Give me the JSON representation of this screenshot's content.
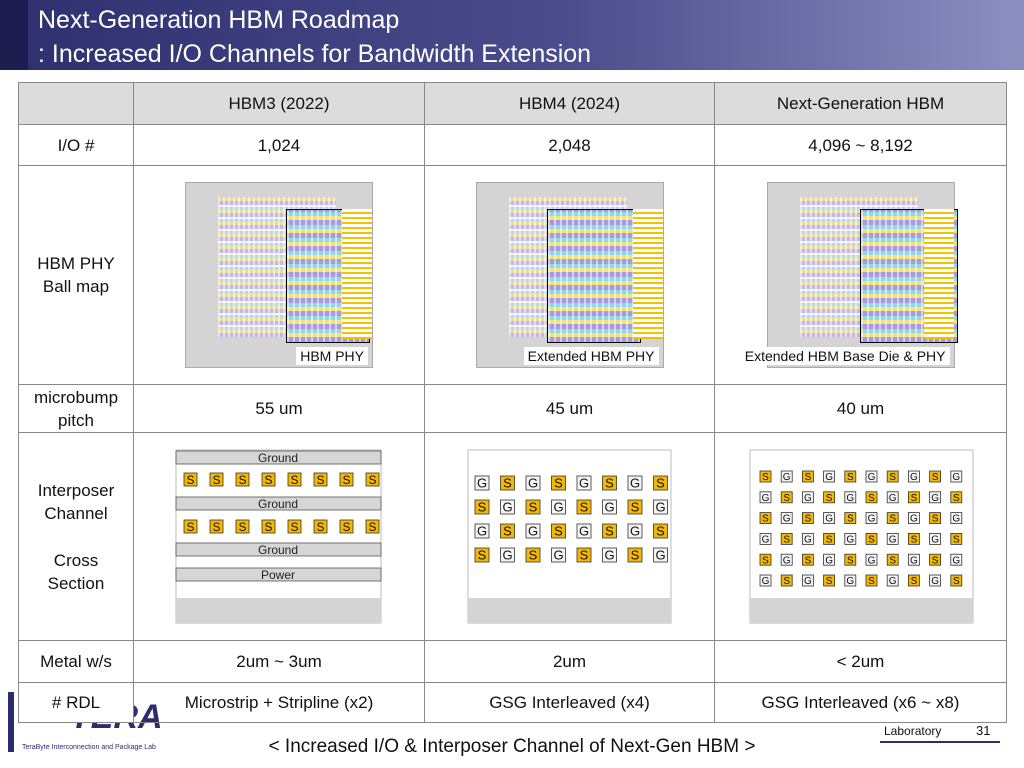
{
  "header": {
    "title_line1": "Next-Generation HBM Roadmap",
    "title_line2": ": Increased I/O Channels for Bandwidth Extension"
  },
  "table": {
    "columns": [
      "HBM3 (2022)",
      "HBM4 (2024)",
      "Next-Generation HBM"
    ],
    "io": {
      "label": "I/O #",
      "cells": [
        "1,024",
        "2,048",
        "4,096 ~ 8,192"
      ]
    },
    "ballmap": {
      "label_lines": [
        "HBM PHY",
        "Ball map"
      ],
      "captions": [
        "HBM PHY",
        "Extended HBM PHY",
        "Extended HBM Base Die & PHY"
      ]
    },
    "pitch": {
      "label_lines": [
        "microbump",
        "pitch"
      ],
      "cells": [
        "55 um",
        "45 um",
        "40 um"
      ]
    },
    "cross": {
      "label_lines": [
        "Interposer",
        "Channel",
        "Cross",
        "Section"
      ],
      "hbm3": {
        "ground": "Ground",
        "power": "Power",
        "signals": [
          [
            "S",
            "S",
            "S",
            "S",
            "S",
            "S",
            "S",
            "S"
          ],
          [
            "S",
            "S",
            "S",
            "S",
            "S",
            "S",
            "S",
            "S"
          ]
        ]
      },
      "hbm4": [
        [
          "G",
          "S",
          "G",
          "S",
          "G",
          "S",
          "G",
          "S"
        ],
        [
          "S",
          "G",
          "S",
          "G",
          "S",
          "G",
          "S",
          "G"
        ],
        [
          "G",
          "S",
          "G",
          "S",
          "G",
          "S",
          "G",
          "S"
        ],
        [
          "S",
          "G",
          "S",
          "G",
          "S",
          "G",
          "S",
          "G"
        ]
      ],
      "next": [
        [
          "S",
          "G",
          "S",
          "G",
          "S",
          "G",
          "S",
          "G",
          "S",
          "G"
        ],
        [
          "G",
          "S",
          "G",
          "S",
          "G",
          "S",
          "G",
          "S",
          "G",
          "S"
        ],
        [
          "S",
          "G",
          "S",
          "G",
          "S",
          "G",
          "S",
          "G",
          "S",
          "G"
        ],
        [
          "G",
          "S",
          "G",
          "S",
          "G",
          "S",
          "G",
          "S",
          "G",
          "S"
        ],
        [
          "S",
          "G",
          "S",
          "G",
          "S",
          "G",
          "S",
          "G",
          "S",
          "G"
        ],
        [
          "G",
          "S",
          "G",
          "S",
          "G",
          "S",
          "G",
          "S",
          "G",
          "S"
        ]
      ]
    },
    "metal": {
      "label": "Metal w/s",
      "cells": [
        "2um ~ 3um",
        "2um",
        "< 2um"
      ]
    },
    "rdl": {
      "label": "# RDL",
      "cells": [
        "Microstrip + Stripline (x2)",
        "GSG Interleaved (x4)",
        "GSG Interleaved (x6 ~ x8)"
      ]
    }
  },
  "footer": {
    "caption": "< Increased I/O & Interposer Channel of Next-Gen HBM >",
    "logo": "TERA",
    "lab_name": "TeraByte Interconnection and Package Lab",
    "lab": "Laboratory",
    "page": 31
  }
}
